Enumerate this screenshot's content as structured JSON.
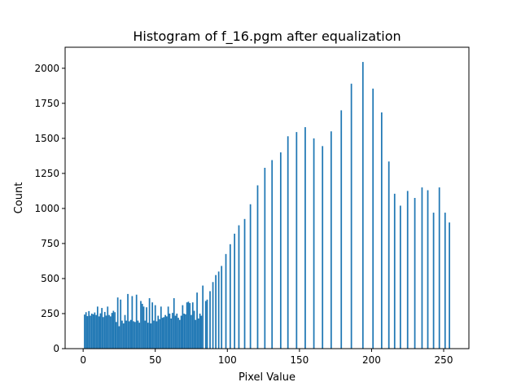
{
  "chart_data": {
    "type": "bar",
    "title": "Histogram of f_16.pgm after equalization",
    "xlabel": "Pixel Value",
    "ylabel": "Count",
    "xlim": [
      -12.5,
      267.5
    ],
    "ylim": [
      0,
      2150
    ],
    "x_ticks": [
      0,
      50,
      100,
      150,
      200,
      250
    ],
    "y_ticks": [
      0,
      250,
      500,
      750,
      1000,
      1250,
      1500,
      1750,
      2000
    ],
    "bar_color": "#1f77b4",
    "grid": false,
    "legend": "none",
    "bars": [
      {
        "x": 1,
        "y": 243
      },
      {
        "x": 2,
        "y": 260
      },
      {
        "x": 3,
        "y": 232
      },
      {
        "x": 4,
        "y": 268
      },
      {
        "x": 5,
        "y": 235
      },
      {
        "x": 6,
        "y": 250
      },
      {
        "x": 7,
        "y": 245
      },
      {
        "x": 8,
        "y": 258
      },
      {
        "x": 9,
        "y": 240
      },
      {
        "x": 10,
        "y": 300
      },
      {
        "x": 11,
        "y": 230
      },
      {
        "x": 12,
        "y": 252
      },
      {
        "x": 13,
        "y": 290
      },
      {
        "x": 14,
        "y": 225
      },
      {
        "x": 15,
        "y": 262
      },
      {
        "x": 16,
        "y": 236
      },
      {
        "x": 17,
        "y": 300
      },
      {
        "x": 18,
        "y": 240
      },
      {
        "x": 19,
        "y": 230
      },
      {
        "x": 20,
        "y": 255
      },
      {
        "x": 21,
        "y": 270
      },
      {
        "x": 22,
        "y": 260
      },
      {
        "x": 23,
        "y": 190
      },
      {
        "x": 24,
        "y": 365
      },
      {
        "x": 25,
        "y": 160
      },
      {
        "x": 26,
        "y": 350
      },
      {
        "x": 27,
        "y": 200
      },
      {
        "x": 28,
        "y": 180
      },
      {
        "x": 29,
        "y": 240
      },
      {
        "x": 30,
        "y": 200
      },
      {
        "x": 31,
        "y": 390
      },
      {
        "x": 32,
        "y": 195
      },
      {
        "x": 33,
        "y": 205
      },
      {
        "x": 34,
        "y": 375
      },
      {
        "x": 35,
        "y": 195
      },
      {
        "x": 36,
        "y": 190
      },
      {
        "x": 37,
        "y": 385
      },
      {
        "x": 38,
        "y": 200
      },
      {
        "x": 39,
        "y": 185
      },
      {
        "x": 40,
        "y": 340
      },
      {
        "x": 41,
        "y": 320
      },
      {
        "x": 42,
        "y": 300
      },
      {
        "x": 43,
        "y": 200
      },
      {
        "x": 44,
        "y": 295
      },
      {
        "x": 45,
        "y": 185
      },
      {
        "x": 46,
        "y": 360
      },
      {
        "x": 47,
        "y": 180
      },
      {
        "x": 48,
        "y": 330
      },
      {
        "x": 49,
        "y": 200
      },
      {
        "x": 50,
        "y": 310
      },
      {
        "x": 51,
        "y": 195
      },
      {
        "x": 52,
        "y": 235
      },
      {
        "x": 53,
        "y": 210
      },
      {
        "x": 54,
        "y": 300
      },
      {
        "x": 55,
        "y": 220
      },
      {
        "x": 56,
        "y": 225
      },
      {
        "x": 57,
        "y": 240
      },
      {
        "x": 58,
        "y": 230
      },
      {
        "x": 59,
        "y": 300
      },
      {
        "x": 60,
        "y": 250
      },
      {
        "x": 61,
        "y": 215
      },
      {
        "x": 62,
        "y": 255
      },
      {
        "x": 63,
        "y": 360
      },
      {
        "x": 64,
        "y": 235
      },
      {
        "x": 65,
        "y": 250
      },
      {
        "x": 66,
        "y": 220
      },
      {
        "x": 67,
        "y": 205
      },
      {
        "x": 68,
        "y": 235
      },
      {
        "x": 69,
        "y": 310
      },
      {
        "x": 70,
        "y": 250
      },
      {
        "x": 71,
        "y": 245
      },
      {
        "x": 72,
        "y": 330
      },
      {
        "x": 73,
        "y": 335
      },
      {
        "x": 74,
        "y": 325
      },
      {
        "x": 75,
        "y": 240
      },
      {
        "x": 76,
        "y": 330
      },
      {
        "x": 77,
        "y": 270
      },
      {
        "x": 78,
        "y": 205
      },
      {
        "x": 79,
        "y": 400
      },
      {
        "x": 80,
        "y": 215
      },
      {
        "x": 81,
        "y": 250
      },
      {
        "x": 82,
        "y": 235
      },
      {
        "x": 83,
        "y": 450
      },
      {
        "x": 85,
        "y": 340
      },
      {
        "x": 86,
        "y": 350
      },
      {
        "x": 88,
        "y": 410
      },
      {
        "x": 90,
        "y": 475
      },
      {
        "x": 92,
        "y": 525
      },
      {
        "x": 94,
        "y": 550
      },
      {
        "x": 96,
        "y": 590
      },
      {
        "x": 99,
        "y": 675
      },
      {
        "x": 102,
        "y": 745
      },
      {
        "x": 105,
        "y": 820
      },
      {
        "x": 108,
        "y": 880
      },
      {
        "x": 112,
        "y": 925
      },
      {
        "x": 116,
        "y": 1030
      },
      {
        "x": 121,
        "y": 1165
      },
      {
        "x": 126,
        "y": 1290
      },
      {
        "x": 131,
        "y": 1345
      },
      {
        "x": 137,
        "y": 1400
      },
      {
        "x": 142,
        "y": 1515
      },
      {
        "x": 148,
        "y": 1545
      },
      {
        "x": 154,
        "y": 1580
      },
      {
        "x": 160,
        "y": 1500
      },
      {
        "x": 166,
        "y": 1445
      },
      {
        "x": 172,
        "y": 1550
      },
      {
        "x": 179,
        "y": 1700
      },
      {
        "x": 186,
        "y": 1890
      },
      {
        "x": 194,
        "y": 2045
      },
      {
        "x": 201,
        "y": 1855
      },
      {
        "x": 207,
        "y": 1685
      },
      {
        "x": 212,
        "y": 1335
      },
      {
        "x": 216,
        "y": 1105
      },
      {
        "x": 220,
        "y": 1020
      },
      {
        "x": 225,
        "y": 1125
      },
      {
        "x": 230,
        "y": 1075
      },
      {
        "x": 235,
        "y": 1150
      },
      {
        "x": 239,
        "y": 1130
      },
      {
        "x": 243,
        "y": 970
      },
      {
        "x": 247,
        "y": 1150
      },
      {
        "x": 251,
        "y": 970
      },
      {
        "x": 254,
        "y": 900
      }
    ]
  }
}
